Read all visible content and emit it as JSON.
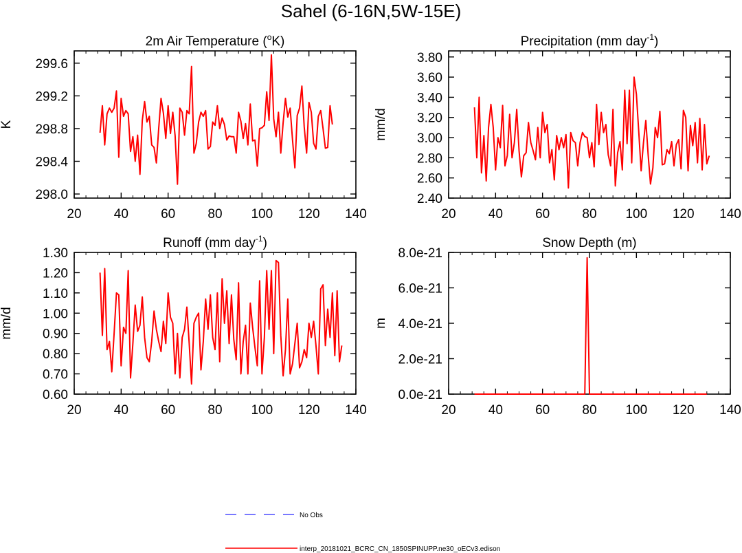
{
  "title": "Sahel (6-16N,5W-15E)",
  "legend": {
    "position": "bottom-center",
    "entries": [
      {
        "label": "No Obs",
        "color": "#4d4dff",
        "style": "dashed"
      },
      {
        "label": "interp_20181021_BCRC_CN_1850SPINUPP.ne30_oECv3.edison",
        "color": "#ff0000",
        "style": "solid"
      }
    ]
  },
  "chart_data": [
    {
      "type": "line",
      "title": "2m Air Temperature (",
      "title_sup": "o",
      "title_after": "K)",
      "xlabel": "",
      "ylabel": "K",
      "xlim": [
        20,
        140
      ],
      "ylim": [
        297.95,
        299.75
      ],
      "xticks": [
        20,
        40,
        60,
        80,
        100,
        120,
        140
      ],
      "xtick_labels": [
        "20",
        "40",
        "60",
        "80",
        "100",
        "120",
        "140"
      ],
      "yticks": [
        298.0,
        298.4,
        298.8,
        299.2,
        299.6
      ],
      "ytick_labels": [
        "298.0",
        "298.4",
        "298.8",
        "299.2",
        "299.6"
      ],
      "grid": false,
      "series": [
        {
          "name": "interp_20181021_BCRC_CN_1850SPINUPP.ne30_oECv3.edison",
          "color": "#ff0000",
          "x_start": 31,
          "values": [
            298.75,
            299.08,
            298.6,
            298.98,
            299.05,
            299.0,
            299.05,
            299.26,
            298.45,
            299.17,
            298.95,
            299.02,
            298.98,
            298.52,
            298.7,
            298.4,
            298.72,
            298.24,
            298.9,
            299.13,
            298.88,
            298.95,
            298.6,
            298.57,
            298.38,
            298.8,
            299.17,
            298.99,
            298.68,
            299.08,
            298.74,
            299.0,
            298.71,
            298.12,
            299.05,
            299.0,
            298.72,
            299.02,
            298.98,
            299.56,
            298.5,
            298.62,
            298.88,
            299.0,
            298.95,
            299.02,
            298.55,
            298.58,
            298.88,
            298.84,
            299.08,
            298.8,
            298.93,
            298.85,
            298.66,
            298.71,
            298.7,
            298.7,
            298.5,
            299.0,
            298.89,
            298.68,
            298.86,
            298.6,
            299.1,
            298.65,
            298.66,
            298.34,
            298.8,
            298.81,
            298.84,
            299.25,
            298.9,
            299.7,
            298.92,
            298.7,
            299.0,
            298.5,
            298.87,
            299.17,
            298.94,
            299.05,
            298.66,
            298.32,
            298.96,
            299.05,
            299.32,
            298.82,
            298.5,
            299.12,
            299.0,
            298.62,
            298.55,
            298.95,
            299.02,
            298.8,
            298.56,
            298.57,
            299.08,
            298.85
          ]
        }
      ]
    },
    {
      "type": "line",
      "title": "Precipitation (mm day",
      "title_sup": "-1",
      "title_after": ")",
      "xlabel": "",
      "ylabel": "mm/d",
      "xlim": [
        20,
        140
      ],
      "ylim": [
        2.4,
        3.86
      ],
      "xticks": [
        20,
        40,
        60,
        80,
        100,
        120,
        140
      ],
      "xtick_labels": [
        "20",
        "40",
        "60",
        "80",
        "100",
        "120",
        "140"
      ],
      "yticks": [
        2.4,
        2.6,
        2.8,
        3.0,
        3.2,
        3.4,
        3.6,
        3.8
      ],
      "ytick_labels": [
        "2.40",
        "2.60",
        "2.80",
        "3.00",
        "3.20",
        "3.40",
        "3.60",
        "3.80"
      ],
      "grid": false,
      "series": [
        {
          "name": "interp_20181021_BCRC_CN_1850SPINUPP.ne30_oECv3.edison",
          "color": "#ff0000",
          "x_start": 31,
          "values": [
            3.3,
            2.8,
            3.4,
            2.65,
            3.02,
            2.57,
            3.1,
            3.33,
            3.1,
            2.68,
            3.0,
            2.9,
            3.32,
            2.72,
            2.82,
            3.23,
            2.8,
            2.95,
            3.28,
            2.87,
            2.61,
            2.82,
            2.85,
            3.15,
            2.95,
            2.87,
            2.78,
            3.1,
            2.8,
            3.25,
            3.05,
            3.13,
            2.75,
            2.88,
            2.58,
            3.02,
            2.88,
            3.0,
            2.9,
            3.03,
            2.5,
            3.05,
            2.97,
            2.95,
            2.72,
            2.95,
            3.05,
            3.01,
            3.0,
            2.8,
            2.95,
            2.71,
            3.33,
            2.93,
            3.25,
            3.05,
            3.13,
            2.83,
            2.72,
            3.28,
            2.52,
            2.85,
            2.96,
            2.68,
            3.47,
            2.94,
            3.47,
            2.75,
            3.6,
            3.43,
            3.05,
            2.67,
            2.95,
            3.17,
            2.83,
            2.54,
            2.7,
            3.1,
            3.0,
            3.26,
            2.73,
            2.74,
            2.88,
            2.84,
            2.96,
            2.72,
            2.93,
            2.98,
            2.69,
            3.27,
            3.2,
            2.67,
            3.12,
            2.92,
            3.15,
            2.75,
            3.19,
            2.68,
            3.13,
            2.74,
            2.82
          ]
        }
      ]
    },
    {
      "type": "line",
      "title": "Runoff (mm day",
      "title_sup": "-1",
      "title_after": ")",
      "xlabel": "",
      "ylabel": "mm/d",
      "xlim": [
        20,
        140
      ],
      "ylim": [
        0.6,
        1.3
      ],
      "xticks": [
        20,
        40,
        60,
        80,
        100,
        120,
        140
      ],
      "xtick_labels": [
        "20",
        "40",
        "60",
        "80",
        "100",
        "120",
        "140"
      ],
      "yticks": [
        0.6,
        0.7,
        0.8,
        0.9,
        1.0,
        1.1,
        1.2,
        1.3
      ],
      "ytick_labels": [
        "0.60",
        "0.70",
        "0.80",
        "0.90",
        "1.00",
        "1.10",
        "1.20",
        "1.30"
      ],
      "grid": false,
      "series": [
        {
          "name": "interp_20181021_BCRC_CN_1850SPINUPP.ne30_oECv3.edison",
          "color": "#ff0000",
          "x_start": 31,
          "values": [
            1.2,
            0.89,
            1.22,
            0.82,
            0.86,
            0.71,
            0.9,
            1.1,
            1.09,
            0.74,
            0.93,
            0.9,
            1.21,
            0.68,
            0.85,
            1.04,
            0.91,
            0.94,
            1.08,
            0.88,
            0.78,
            0.76,
            0.86,
            1.01,
            0.92,
            0.86,
            0.81,
            0.96,
            0.85,
            1.1,
            0.98,
            0.95,
            0.7,
            0.9,
            0.68,
            0.88,
            0.92,
            1.03,
            0.85,
            0.65,
            0.95,
            0.98,
            1.0,
            0.72,
            0.86,
            1.07,
            0.92,
            1.09,
            0.88,
            0.82,
            1.1,
            0.76,
            1.17,
            0.95,
            1.11,
            0.85,
            1.09,
            0.87,
            0.77,
            1.15,
            0.7,
            0.86,
            0.94,
            0.7,
            1.05,
            0.93,
            0.83,
            0.74,
            1.16,
            0.7,
            0.88,
            1.21,
            0.92,
            1.21,
            0.8,
            1.26,
            1.25,
            0.89,
            0.69,
            0.82,
            1.07,
            0.7,
            0.75,
            0.85,
            0.95,
            0.73,
            0.76,
            0.82,
            0.78,
            0.95,
            0.88,
            0.96,
            0.84,
            0.7,
            1.12,
            1.14,
            0.84,
            1.02,
            0.88,
            1.1,
            0.79,
            1.11,
            0.76,
            0.84
          ]
        }
      ]
    },
    {
      "type": "line",
      "title": "Snow Depth (m)",
      "title_sup": "",
      "title_after": "",
      "xlabel": "",
      "ylabel": "m",
      "xlim": [
        20,
        140
      ],
      "ylim": [
        0,
        8e-21
      ],
      "xticks": [
        20,
        40,
        60,
        80,
        100,
        120,
        140
      ],
      "xtick_labels": [
        "20",
        "40",
        "60",
        "80",
        "100",
        "120",
        "140"
      ],
      "yticks": [
        0,
        2e-21,
        4e-21,
        6e-21,
        8e-21
      ],
      "ytick_labels": [
        "0.0e-21",
        "2.0e-21",
        "4.0e-21",
        "6.0e-21",
        "8.0e-21"
      ],
      "grid": false,
      "series": [
        {
          "name": "interp_20181021_BCRC_CN_1850SPINUPP.ne30_oECv3.edison",
          "color": "#ff0000",
          "x": [
            31,
            48,
            78,
            79,
            80,
            90,
            130
          ],
          "values": [
            0,
            0,
            0,
            7.7e-21,
            0,
            0,
            0
          ]
        }
      ]
    }
  ]
}
